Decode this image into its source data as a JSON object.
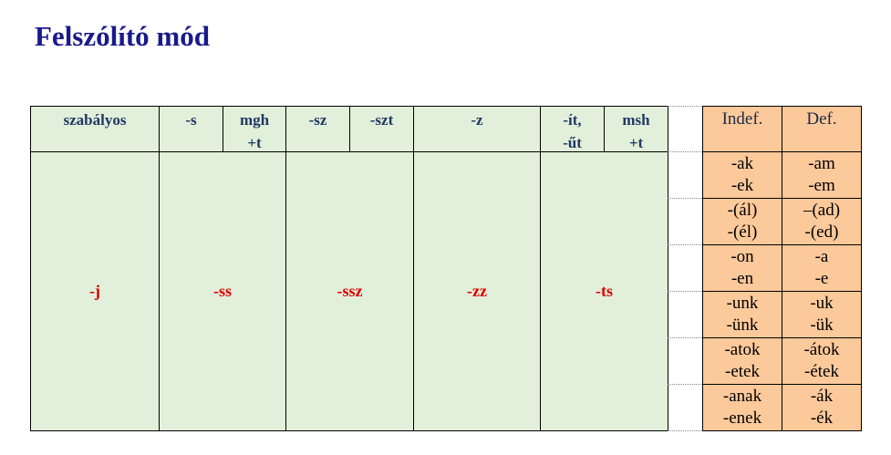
{
  "title": "Felszólító mód",
  "left_table": {
    "header": [
      [
        "szabályos"
      ],
      [
        "-s"
      ],
      [
        "mgh",
        "+t"
      ],
      [
        "-sz"
      ],
      [
        "-szt"
      ],
      [
        "-z"
      ],
      [
        "-ít,",
        "-űt"
      ],
      [
        "msh",
        "+t"
      ]
    ],
    "body": [
      "-j",
      "-ss",
      "-ssz",
      "-zz",
      "-ts"
    ]
  },
  "right_table": {
    "header": [
      "Indef.",
      "Def."
    ],
    "rows": [
      [
        [
          "-ak",
          "-ek"
        ],
        [
          "-am",
          "-em"
        ]
      ],
      [
        [
          "-(ál)",
          "-(él)"
        ],
        [
          "–(ad)",
          "-(ed)"
        ]
      ],
      [
        [
          "-on",
          "-en"
        ],
        [
          "-a",
          "-e"
        ]
      ],
      [
        [
          "-unk",
          "-ünk"
        ],
        [
          "-uk",
          "-ük"
        ]
      ],
      [
        [
          "-atok",
          "-etek"
        ],
        [
          "-átok",
          "-étek"
        ]
      ],
      [
        [
          "-anak",
          "-enek"
        ],
        [
          "-ák",
          "-ék"
        ]
      ]
    ]
  }
}
